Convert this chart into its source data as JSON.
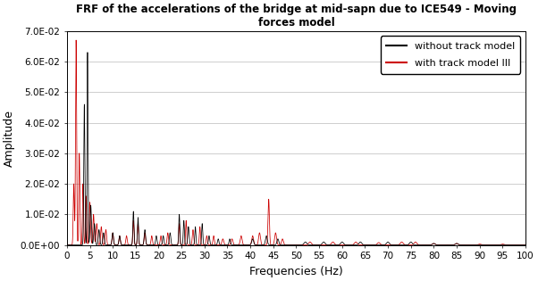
{
  "title_line1": "FRF of the accelerations of the bridge at mid-sapn due to ICE549 - Moving",
  "title_line2": "forces model",
  "xlabel": "Frequencies (Hz)",
  "ylabel": "Amplitude",
  "xlim": [
    0,
    100
  ],
  "ylim": [
    0,
    0.07
  ],
  "xticks": [
    0,
    5,
    10,
    15,
    20,
    25,
    30,
    35,
    40,
    45,
    50,
    55,
    60,
    65,
    70,
    75,
    80,
    85,
    90,
    95,
    100
  ],
  "yticks": [
    0.0,
    0.01,
    0.02,
    0.03,
    0.04,
    0.05,
    0.06,
    0.07
  ],
  "ytick_labels": [
    "0.0E+00",
    "1.0E-02",
    "2.0E-02",
    "3.0E-02",
    "4.0E-02",
    "5.0E-02",
    "6.0E-02",
    "7.0E-02"
  ],
  "legend_labels": [
    "without track model",
    "with track model III"
  ],
  "line_colors": [
    "#000000",
    "#cc0000"
  ],
  "background_color": "#ffffff",
  "grid_color": "#bbbbbb",
  "title_fontsize": 8.5,
  "label_fontsize": 9,
  "tick_fontsize": 7.5,
  "legend_fontsize": 8
}
